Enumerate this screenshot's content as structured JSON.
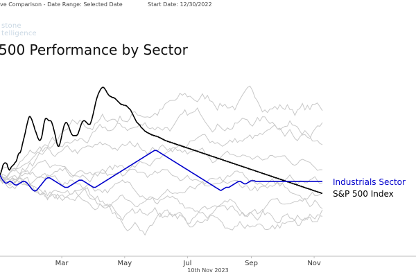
{
  "header": {
    "left_text": "ve Comparison - Date Range: Selected Date",
    "start_text": "Start Date: 12/30/2022"
  },
  "watermark": {
    "line1": "stone",
    "line2": "telligence"
  },
  "footer": {
    "date": "10th Nov 2023"
  },
  "chart_data": {
    "type": "line",
    "title": "500 Performance by Sector",
    "xlabel": "",
    "ylabel": "",
    "x_ticks": [
      "Mar",
      "May",
      "Jul",
      "Sep",
      "Nov"
    ],
    "x_tick_days": [
      60,
      121,
      182,
      244,
      305
    ],
    "x_domain_days": [
      0,
      313
    ],
    "grid": false,
    "legend": "inline-right",
    "series": [
      {
        "name": "S&P 500 Index",
        "color": "#000000",
        "highlight": true,
        "values": [
          0,
          3,
          6,
          9,
          13,
          17,
          19,
          20,
          21,
          21,
          21,
          20,
          19,
          15,
          12,
          10,
          9,
          10,
          12,
          14,
          15,
          16,
          17,
          18,
          19,
          21,
          22,
          23,
          25,
          28,
          32,
          35,
          37,
          38,
          38,
          40,
          43,
          47,
          52,
          56,
          60,
          64,
          68,
          72,
          77,
          82,
          86,
          90,
          94,
          97,
          99,
          99,
          98,
          96,
          94,
          91,
          88,
          85,
          82,
          78,
          75,
          73,
          70,
          67,
          64,
          62,
          60,
          59,
          59,
          60,
          62,
          65,
          70,
          76,
          83,
          88,
          92,
          95,
          96,
          96,
          95,
          94,
          93,
          92,
          92,
          92,
          92,
          91,
          89,
          86,
          83,
          79,
          75,
          71,
          67,
          62,
          57,
          53,
          50,
          49,
          49,
          51,
          54,
          58,
          62,
          67,
          72,
          76,
          80,
          84,
          86,
          88,
          89,
          89,
          88,
          86,
          84,
          82,
          79,
          76,
          73,
          71,
          69,
          68,
          67,
          67,
          67,
          67,
          67,
          67,
          67,
          68,
          69,
          71,
          74,
          77,
          80,
          83,
          86,
          88,
          90,
          91,
          92,
          92,
          92,
          91,
          90,
          89,
          88,
          87,
          86,
          86,
          86,
          86,
          88,
          91,
          94,
          98,
          102,
          106,
          111,
          115,
          120,
          124,
          128,
          131,
          134,
          137,
          139,
          141,
          143,
          145,
          146,
          147,
          148,
          148,
          148,
          147,
          146,
          144,
          143,
          141,
          139,
          138,
          136,
          135,
          134,
          133,
          133,
          132,
          132,
          131,
          131,
          131,
          130,
          130,
          129,
          128,
          127,
          126,
          125,
          124,
          123,
          122,
          121,
          120,
          120,
          119,
          119,
          119,
          118,
          118,
          118,
          118,
          117,
          117,
          116,
          115,
          114,
          113,
          112,
          111,
          110,
          108,
          106,
          104,
          102,
          100,
          98,
          96,
          94,
          92,
          90,
          89,
          88,
          87,
          86,
          85,
          84,
          82,
          81,
          80,
          79,
          78,
          77,
          76,
          75,
          74,
          74,
          73,
          72,
          72,
          71,
          71,
          70,
          70,
          69,
          69,
          68,
          68,
          68,
          67,
          67,
          67,
          66,
          66,
          66,
          65,
          65,
          65,
          64,
          64,
          63,
          63,
          62,
          62,
          61,
          61,
          60,
          60,
          59,
          59,
          58,
          58,
          58,
          57,
          57,
          57,
          56,
          56,
          56,
          55,
          55,
          55,
          54,
          54,
          54,
          53,
          53,
          53,
          52,
          52,
          52,
          51,
          51,
          51,
          50,
          50,
          50,
          49,
          49,
          49,
          48,
          48,
          48,
          47,
          47,
          47,
          46,
          46,
          46,
          45,
          45,
          45,
          44,
          44,
          44,
          43,
          43,
          43,
          42,
          42,
          42,
          41,
          41,
          41,
          40,
          40,
          40,
          39,
          39,
          39,
          38,
          38,
          38,
          37,
          37,
          37,
          36,
          36,
          36,
          35,
          35,
          35,
          34,
          34,
          34,
          33,
          33,
          33,
          32,
          32,
          32,
          31,
          31,
          31,
          30,
          30,
          30,
          29,
          29,
          29,
          28,
          28,
          28,
          27,
          27,
          27,
          26,
          26,
          26,
          25,
          25,
          25,
          24,
          24,
          24,
          23,
          23,
          23,
          22,
          22,
          22,
          21,
          21,
          21,
          20,
          20,
          20,
          19,
          19,
          19,
          18,
          18,
          18,
          17,
          17,
          17,
          16,
          16,
          16,
          15,
          15,
          15,
          14,
          14,
          14,
          13,
          13,
          13,
          12,
          12,
          12,
          11,
          11,
          11,
          10,
          10,
          10,
          9,
          9,
          9,
          8,
          8,
          8,
          7,
          7,
          7,
          6,
          6,
          6,
          5,
          5,
          5,
          4,
          4,
          4,
          3,
          3,
          3,
          2,
          2,
          2,
          1,
          1,
          1,
          0,
          0,
          0,
          -1,
          -1,
          -1,
          -2,
          -2,
          -2,
          -3,
          -3,
          -3,
          -4,
          -4,
          -4,
          -5,
          -5,
          -5,
          -6,
          -6,
          -6,
          -7,
          -7,
          -7,
          -8,
          -8,
          -8,
          -9,
          -9,
          -9,
          -10,
          -10,
          -10,
          -11,
          -11,
          -11,
          -12,
          -12,
          -12,
          -13,
          -13,
          -13,
          -14,
          -14,
          -14,
          -15,
          -15,
          -15,
          -16,
          -16,
          -16,
          -17,
          -17,
          -17,
          -18,
          -18,
          -18,
          -19,
          -19,
          -19,
          -20,
          -20,
          -20,
          -21,
          -21,
          -21,
          -22,
          -22,
          -22,
          -23,
          -23,
          -23,
          -24,
          -24,
          -24,
          -25,
          -25,
          -25,
          -26,
          -26,
          -26,
          -27,
          -27,
          -27,
          -28,
          -28,
          -28,
          -29,
          -29,
          -29,
          -30,
          -30,
          -30
        ]
      },
      {
        "name": "Industrials Sector",
        "color": "#0000cc",
        "highlight": true,
        "values": [
          0,
          -3,
          -6,
          -8,
          -10,
          -12,
          -13,
          -13,
          -12,
          -11,
          -10,
          -10,
          -11,
          -12,
          -14,
          -15,
          -16,
          -16,
          -16,
          -15,
          -14,
          -13,
          -12,
          -11,
          -10,
          -10,
          -10,
          -11,
          -12,
          -14,
          -16,
          -18,
          -20,
          -22,
          -24,
          -25,
          -26,
          -26,
          -25,
          -24,
          -22,
          -20,
          -18,
          -16,
          -14,
          -12,
          -10,
          -8,
          -6,
          -5,
          -4,
          -4,
          -4,
          -5,
          -6,
          -7,
          -8,
          -9,
          -10,
          -11,
          -12,
          -13,
          -14,
          -15,
          -16,
          -17,
          -18,
          -19,
          -20,
          -20,
          -20,
          -20,
          -19,
          -18,
          -17,
          -16,
          -15,
          -14,
          -13,
          -12,
          -11,
          -10,
          -9,
          -8,
          -8,
          -8,
          -8,
          -9,
          -10,
          -11,
          -12,
          -13,
          -14,
          -15,
          -16,
          -17,
          -18,
          -19,
          -20,
          -20,
          -20,
          -19,
          -18,
          -17,
          -16,
          -15,
          -14,
          -13,
          -12,
          -11,
          -10,
          -9,
          -8,
          -7,
          -6,
          -5,
          -4,
          -3,
          -2,
          -1,
          0,
          1,
          2,
          3,
          4,
          5,
          6,
          7,
          8,
          9,
          10,
          11,
          12,
          13,
          14,
          15,
          16,
          17,
          18,
          19,
          20,
          21,
          22,
          23,
          24,
          25,
          26,
          27,
          28,
          29,
          30,
          31,
          32,
          33,
          34,
          35,
          36,
          37,
          38,
          39,
          40,
          41,
          42,
          42,
          42,
          41,
          40,
          39,
          38,
          37,
          36,
          35,
          34,
          33,
          32,
          31,
          30,
          29,
          28,
          27,
          26,
          25,
          24,
          23,
          22,
          21,
          20,
          19,
          18,
          17,
          16,
          15,
          14,
          13,
          12,
          11,
          10,
          9,
          8,
          7,
          6,
          5,
          4,
          3,
          2,
          1,
          0,
          -1,
          -2,
          -3,
          -4,
          -5,
          -6,
          -7,
          -8,
          -9,
          -10,
          -11,
          -12,
          -13,
          -14,
          -15,
          -16,
          -17,
          -18,
          -19,
          -20,
          -21,
          -22,
          -23,
          -24,
          -25,
          -25,
          -24,
          -23,
          -22,
          -21,
          -20,
          -20,
          -20,
          -20,
          -19,
          -18,
          -17,
          -16,
          -15,
          -14,
          -13,
          -12,
          -11,
          -10,
          -10,
          -10,
          -11,
          -12,
          -13,
          -14,
          -14,
          -14,
          -13,
          -12,
          -11,
          -10,
          -9,
          -9,
          -9,
          -9,
          -9,
          -10,
          -10,
          -10,
          -10,
          -10,
          -10,
          -10,
          -10,
          -10,
          -10,
          -10,
          -10,
          -10,
          -10,
          -10,
          -10,
          -10,
          -10,
          -10,
          -10,
          -10,
          -10,
          -10,
          -10,
          -10,
          -10,
          -10,
          -10,
          -10,
          -10,
          -10,
          -10,
          -10,
          -10,
          -10,
          -10,
          -10,
          -10,
          -10,
          -10,
          -10,
          -10,
          -10,
          -10,
          -10,
          -10,
          -10,
          -10,
          -10,
          -10,
          -10,
          -10,
          -10,
          -10,
          -10,
          -10,
          -10,
          -10,
          -10,
          -10,
          -10,
          -10,
          -10,
          -10,
          -10,
          -10,
          -10,
          -10,
          -10,
          -10,
          -10
        ]
      }
    ],
    "other_series_count": 9,
    "colors": {
      "highlight_sp500": "#000000",
      "highlight_industrials": "#0000cc",
      "other_sectors": "#c8c8c8",
      "header_text": "#444444"
    }
  }
}
